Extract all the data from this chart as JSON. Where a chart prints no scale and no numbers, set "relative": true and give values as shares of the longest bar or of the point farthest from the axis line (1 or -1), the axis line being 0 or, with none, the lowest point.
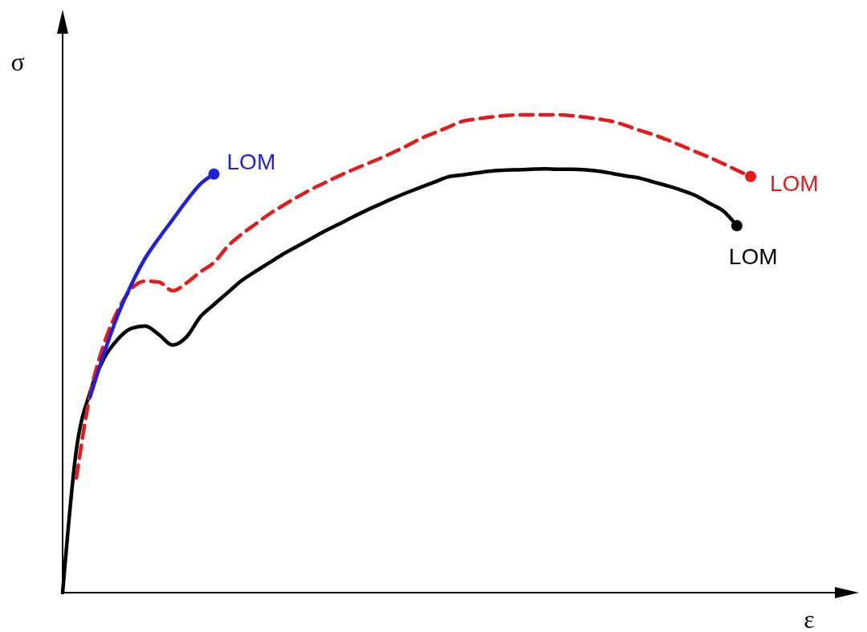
{
  "chart_data": {
    "type": "line",
    "relative": true,
    "xlabel": "ε",
    "ylabel": "σ",
    "categories": [
      null,
      null,
      null,
      null,
      null,
      null,
      null,
      null,
      null,
      null,
      null,
      null,
      null,
      null,
      null,
      null,
      null,
      null,
      null,
      null,
      null,
      null,
      null,
      null,
      null,
      null,
      null,
      null,
      null,
      null,
      null,
      null,
      null,
      null,
      null,
      null,
      null,
      null,
      null,
      null,
      null,
      null,
      null,
      null,
      null,
      null,
      null,
      null,
      null,
      null,
      null
    ],
    "series": [
      {
        "color": "#000000",
        "line_style": "solid",
        "values": [
          0,
          0.299,
          0.42,
          0.49,
          0.53,
          0.553,
          0.558,
          0.54,
          0.518,
          0.535,
          0.577,
          0.603,
          0.628,
          0.653,
          0.672,
          0.69,
          0.708,
          0.724,
          0.74,
          0.756,
          0.77,
          0.785,
          0.799,
          0.812,
          0.825,
          0.837,
          0.848,
          0.859,
          0.87,
          0.874,
          0.878,
          0.882,
          0.884,
          0.885,
          0.886,
          0.887,
          0.886,
          0.886,
          0.885,
          0.882,
          0.877,
          0.872,
          0.867,
          0.859,
          0.851,
          0.842,
          0.831,
          0.815,
          0.799,
          0.768,
          null
        ]
      },
      {
        "color": "#e41a1c",
        "line_style": "dashed",
        "values": [
          null,
          0.24,
          0.415,
          0.52,
          0.59,
          0.636,
          0.652,
          0.65,
          0.632,
          0.648,
          0.671,
          0.691,
          0.725,
          0.75,
          0.771,
          0.792,
          0.81,
          0.827,
          0.843,
          0.857,
          0.871,
          0.884,
          0.896,
          0.908,
          0.921,
          0.935,
          0.95,
          0.962,
          0.974,
          0.986,
          0.991,
          0.995,
          0.998,
          1,
          1,
          1,
          1,
          0.998,
          0.995,
          0.991,
          0.986,
          0.977,
          0.967,
          0.958,
          0.947,
          0.935,
          0.923,
          0.911,
          0.898,
          0.884,
          0.871
        ]
      },
      {
        "color": "#1f1fe0",
        "line_style": "solid",
        "values": [
          null,
          null,
          0.41,
          0.5,
          0.58,
          0.645,
          0.7,
          0.742,
          0.781,
          0.82,
          0.855,
          0.876,
          null,
          null,
          null,
          null,
          null,
          null,
          null,
          null,
          null,
          null,
          null,
          null,
          null,
          null,
          null,
          null,
          null,
          null,
          null,
          null,
          null,
          null,
          null,
          null,
          null,
          null,
          null,
          null,
          null,
          null,
          null,
          null,
          null,
          null,
          null,
          null,
          null,
          null,
          null
        ]
      }
    ],
    "annotations": [
      "LOM",
      "LOM",
      "LOM"
    ]
  }
}
